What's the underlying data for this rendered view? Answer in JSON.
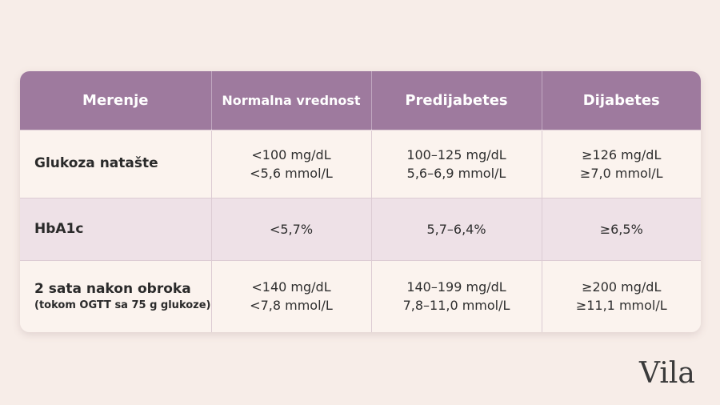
{
  "table": {
    "headers": [
      "Merenje",
      "Normalna vrednost",
      "Predijabetes",
      "Dijabetes"
    ],
    "rows": [
      {
        "label": "Glukoza natašte",
        "sublabel": "",
        "normal": [
          "<100 mg/dL",
          "<5,6 mmol/L"
        ],
        "prediabetes": [
          "100–125 mg/dL",
          "5,6–6,9 mmol/L"
        ],
        "diabetes": [
          "≥126 mg/dL",
          "≥7,0 mmol/L"
        ]
      },
      {
        "label": "HbA1c",
        "sublabel": "",
        "normal": [
          "<5,7%"
        ],
        "prediabetes": [
          "5,7–6,4%"
        ],
        "diabetes": [
          "≥6,5%"
        ]
      },
      {
        "label": "2 sata nakon obroka",
        "sublabel": "(tokom OGTT sa 75 g glukoze)",
        "normal": [
          "<140 mg/dL",
          "<7,8 mmol/L"
        ],
        "prediabetes": [
          "140–199 mg/dL",
          "7,8–11,0 mmol/L"
        ],
        "diabetes": [
          "≥200 mg/dL",
          "≥11,1 mmol/L"
        ]
      }
    ]
  },
  "logo": "Vila",
  "colors": {
    "background": "#f7ede8",
    "header": "#9e7a9e",
    "row_alt": "#eee1e7",
    "row": "#fbf3ee"
  }
}
